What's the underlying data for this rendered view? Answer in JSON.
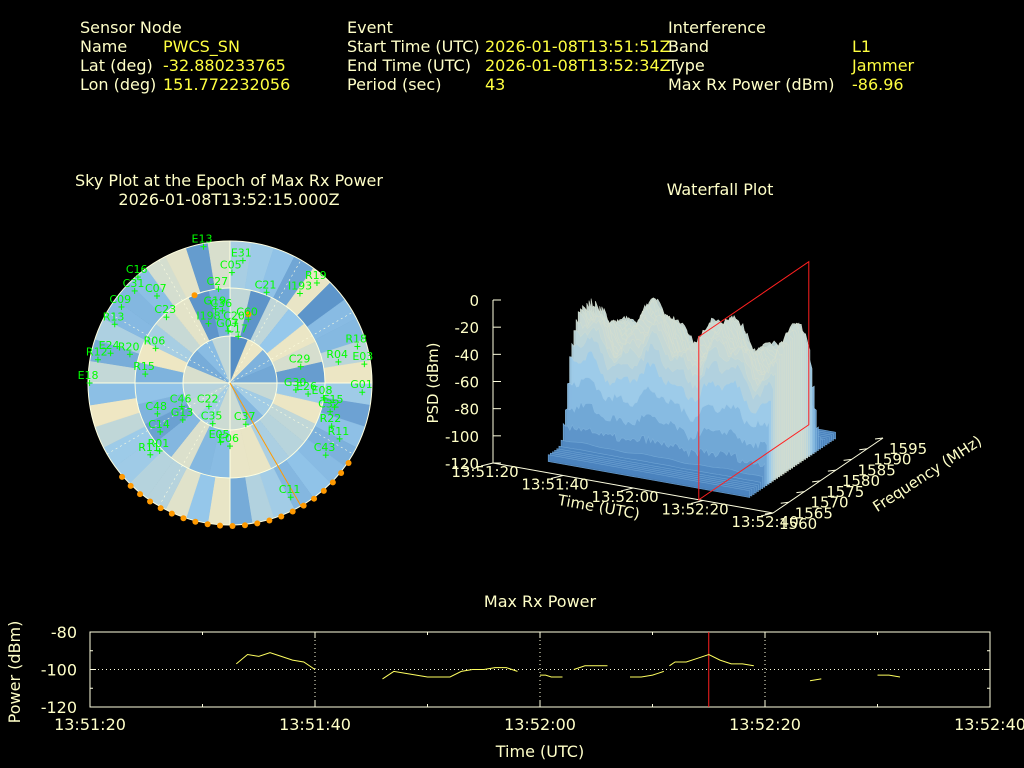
{
  "header": {
    "sensor": {
      "heading": "Sensor Node",
      "name_label": "Name",
      "name_value": "PWCS_SN",
      "lat_label": "Lat (deg)",
      "lat_value": "-32.880233765",
      "lon_label": "Lon (deg)",
      "lon_value": "151.772232056"
    },
    "event": {
      "heading": "Event",
      "start_label": "Start Time (UTC)",
      "start_value": "2026-01-08T13:51:51Z",
      "end_label": "End Time (UTC)",
      "end_value": "2026-01-08T13:52:34Z",
      "period_label": "Period (sec)",
      "period_value": "43"
    },
    "interference": {
      "heading": "Interference",
      "band_label": "Band",
      "band_value": "L1",
      "type_label": "Type",
      "type_value": "Jammer",
      "maxrx_label": "Max Rx Power (dBm)",
      "maxrx_value": "-86.96"
    }
  },
  "colors": {
    "label": "#ffffc8",
    "value": "#ffff40",
    "satellite": "#00ff00",
    "orange": "#ff9900",
    "marker_red": "#ff2020",
    "line_yellow": "#ffff60"
  },
  "chart_data": [
    {
      "type": "scatter",
      "title": "Sky Plot at the Epoch of Max Rx Power",
      "subtitle": "2026-01-08T13:52:15.000Z",
      "satellites": [
        {
          "id": "E13",
          "az": 349,
          "el": 2
        },
        {
          "id": "E31",
          "az": 6,
          "el": 12
        },
        {
          "id": "C05",
          "az": 1,
          "el": 20
        },
        {
          "id": "C16",
          "az": 319,
          "el": 1
        },
        {
          "id": "C31",
          "az": 314,
          "el": 6
        },
        {
          "id": "C07",
          "az": 320,
          "el": 18
        },
        {
          "id": "C27",
          "az": 353,
          "el": 30
        },
        {
          "id": "C21",
          "az": 22,
          "el": 28
        },
        {
          "id": "R19",
          "az": 41,
          "el": 6
        },
        {
          "id": "I193",
          "az": 38,
          "el": 18
        },
        {
          "id": "G19",
          "az": 349,
          "el": 42
        },
        {
          "id": "C36",
          "az": 354,
          "el": 44
        },
        {
          "id": "C60",
          "az": 16,
          "el": 48
        },
        {
          "id": "C20",
          "az": 5,
          "el": 52
        },
        {
          "id": "G07",
          "az": 358,
          "el": 57
        },
        {
          "id": "C17",
          "az": 10,
          "el": 60
        },
        {
          "id": "I198",
          "az": 340,
          "el": 50
        },
        {
          "id": "C09",
          "az": 305,
          "el": 6
        },
        {
          "id": "C23",
          "az": 316,
          "el": 32
        },
        {
          "id": "R13",
          "az": 297,
          "el": 8
        },
        {
          "id": "R06",
          "az": 295,
          "el": 38
        },
        {
          "id": "R20",
          "az": 286,
          "el": 24
        },
        {
          "id": "E24",
          "az": 284,
          "el": 12
        },
        {
          "id": "R12",
          "az": 280,
          "el": 5
        },
        {
          "id": "R15",
          "az": 276,
          "el": 36
        },
        {
          "id": "E18",
          "az": 270,
          "el": 1
        },
        {
          "id": "R18",
          "az": 74,
          "el": 6
        },
        {
          "id": "R04",
          "az": 79,
          "el": 20
        },
        {
          "id": "C29",
          "az": 77,
          "el": 44
        },
        {
          "id": "E03",
          "az": 82,
          "el": 4
        },
        {
          "id": "G01",
          "az": 94,
          "el": 6
        },
        {
          "id": "G30",
          "az": 96,
          "el": 48
        },
        {
          "id": "E26",
          "az": 98,
          "el": 40
        },
        {
          "id": "E15",
          "az": 103,
          "el": 22
        },
        {
          "id": "E08",
          "az": 99,
          "el": 30
        },
        {
          "id": "C32",
          "az": 106,
          "el": 24
        },
        {
          "id": "R22",
          "az": 113,
          "el": 20
        },
        {
          "id": "R11",
          "az": 117,
          "el": 12
        },
        {
          "id": "C43",
          "az": 127,
          "el": 14
        },
        {
          "id": "C11",
          "az": 152,
          "el": 8
        },
        {
          "id": "C48",
          "az": 247,
          "el": 40
        },
        {
          "id": "C46",
          "az": 244,
          "el": 56
        },
        {
          "id": "G13",
          "az": 232,
          "el": 52
        },
        {
          "id": "C22",
          "az": 222,
          "el": 70
        },
        {
          "id": "C35",
          "az": 203,
          "el": 62
        },
        {
          "id": "C37",
          "az": 159,
          "el": 62
        },
        {
          "id": "E05",
          "az": 189,
          "el": 52
        },
        {
          "id": "E06",
          "az": 180,
          "el": 50
        },
        {
          "id": "C14",
          "az": 235,
          "el": 36
        },
        {
          "id": "R01",
          "az": 226,
          "el": 28
        },
        {
          "id": "R11",
          "az": 228,
          "el": 22
        }
      ]
    },
    {
      "type": "area",
      "title": "Waterfall Plot",
      "xlabel": "Time (UTC)",
      "ylabel": "Frequency (MHz)",
      "zlabel": "PSD (dBm)",
      "x_ticks": [
        "13:51:20",
        "13:51:40",
        "13:52:00",
        "13:52:20",
        "13:52:40"
      ],
      "y_ticks": [
        "1560",
        "1565",
        "1570",
        "1575",
        "1580",
        "1585",
        "1590",
        "1595"
      ],
      "z_ticks": [
        "0",
        "-20",
        "-40",
        "-60",
        "-80",
        "-100",
        "-120"
      ],
      "zlim": [
        -120,
        0
      ],
      "marker_time": "13:52:15"
    },
    {
      "type": "line",
      "title": "Max Rx Power",
      "xlabel": "Time (UTC)",
      "ylabel": "Power (dBm)",
      "ylim": [
        -120,
        -80
      ],
      "y_ticks": [
        "-80",
        "-100",
        "-120"
      ],
      "x_ticks": [
        "13:51:20",
        "13:51:40",
        "13:52:00",
        "13:52:20",
        "13:52:40"
      ],
      "marker_time_sec": 55,
      "segments": [
        [
          [
            13,
            -97
          ],
          [
            14,
            -92
          ],
          [
            15,
            -93
          ],
          [
            16,
            -91
          ],
          [
            17,
            -93
          ],
          [
            18,
            -95
          ],
          [
            19,
            -96
          ],
          [
            20,
            -100
          ]
        ],
        [
          [
            26,
            -105
          ],
          [
            27,
            -101
          ],
          [
            28,
            -102
          ],
          [
            29,
            -103
          ],
          [
            30,
            -104
          ],
          [
            31,
            -104
          ],
          [
            32,
            -104
          ],
          [
            33,
            -101
          ],
          [
            34,
            -100
          ],
          [
            35,
            -100
          ],
          [
            36,
            -99
          ],
          [
            37,
            -99
          ],
          [
            38,
            -101
          ]
        ],
        [
          [
            40,
            -103
          ],
          [
            40.5,
            -103
          ],
          [
            41,
            -104
          ],
          [
            42,
            -104
          ]
        ],
        [
          [
            43,
            -100
          ],
          [
            44,
            -98
          ],
          [
            45,
            -98
          ],
          [
            46,
            -98
          ]
        ],
        [
          [
            48,
            -104
          ],
          [
            49,
            -104
          ],
          [
            50,
            -103
          ],
          [
            50.5,
            -102
          ],
          [
            51,
            -101
          ]
        ],
        [
          [
            51.5,
            -98
          ],
          [
            52,
            -96
          ],
          [
            53,
            -96
          ],
          [
            54,
            -94
          ],
          [
            55,
            -92
          ],
          [
            56,
            -95
          ],
          [
            57,
            -97
          ],
          [
            58,
            -97
          ],
          [
            59,
            -98
          ]
        ],
        [
          [
            64,
            -106
          ],
          [
            65,
            -105
          ]
        ],
        [
          [
            70,
            -103
          ],
          [
            71,
            -103
          ],
          [
            72,
            -104
          ]
        ]
      ]
    }
  ]
}
